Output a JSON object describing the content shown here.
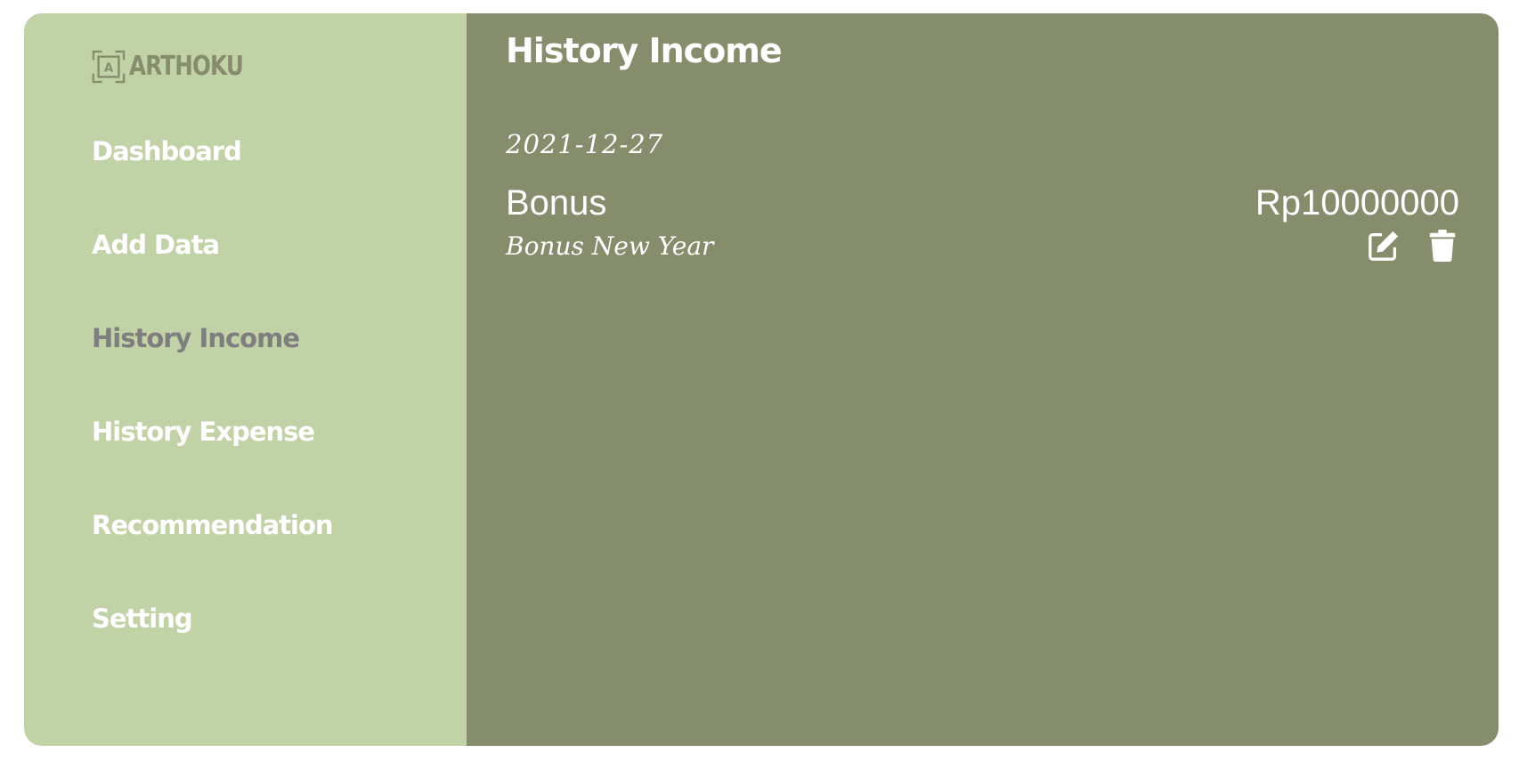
{
  "brand": {
    "name": "ARTHOKU",
    "icon": "logo-icon"
  },
  "nav": {
    "items": [
      {
        "label": "Dashboard",
        "active": false
      },
      {
        "label": "Add Data",
        "active": false
      },
      {
        "label": "History Income",
        "active": true
      },
      {
        "label": "History Expense",
        "active": false
      },
      {
        "label": "Recommendation",
        "active": false
      },
      {
        "label": "Setting",
        "active": false
      }
    ]
  },
  "main": {
    "title": "History Income",
    "records": [
      {
        "date": "2021-12-27",
        "title": "Bonus",
        "amount": "Rp10000000",
        "description": "Bonus New Year",
        "actions": [
          "edit-icon",
          "trash-icon"
        ]
      }
    ]
  },
  "colors": {
    "sidebar_bg": "#c2d2a7",
    "main_bg": "#868d6c",
    "active_nav": "#7e7e7e",
    "text": "#ffffff"
  }
}
